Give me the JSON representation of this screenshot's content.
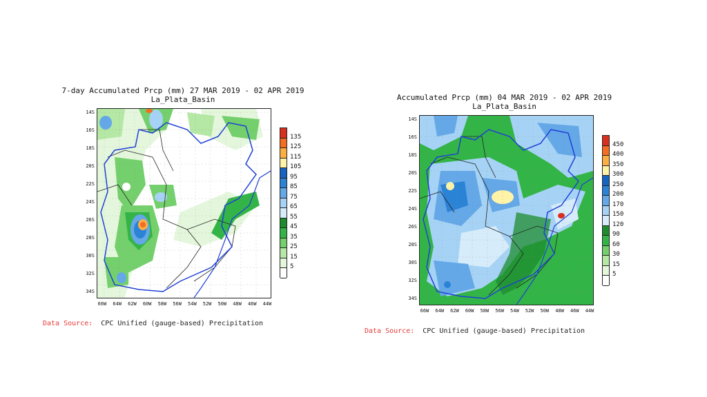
{
  "left": {
    "title_line1": "7-day Accumulated Prcp (mm) 27 MAR 2019 - 02 APR 2019",
    "title_line2": "La_Plata_Basin",
    "yticks": [
      "14S",
      "16S",
      "18S",
      "20S",
      "22S",
      "24S",
      "26S",
      "28S",
      "30S",
      "32S",
      "34S"
    ],
    "xticks": [
      "66W",
      "64W",
      "62W",
      "60W",
      "58W",
      "56W",
      "54W",
      "52W",
      "50W",
      "48W",
      "46W",
      "44W"
    ],
    "legend_levels": [
      "135",
      "125",
      "115",
      "105",
      "95",
      "85",
      "75",
      "65",
      "55",
      "45",
      "35",
      "25",
      "15",
      "5"
    ],
    "legend_colors": [
      "#d7301f",
      "#f46d21",
      "#fdae42",
      "#fff3a8",
      "#1565c0",
      "#2b83d6",
      "#64a8e8",
      "#a6d3f5",
      "#d6ecfb",
      "#1e8c2e",
      "#33b447",
      "#74d06c",
      "#b4e8a4",
      "#e4f7dc",
      "#ffffff"
    ],
    "source_label": "Data Source:",
    "source_text": "CPC Unified (gauge-based) Precipitation"
  },
  "right": {
    "title_line1": "Accumulated Prcp (mm) 04 MAR 2019 - 02 APR 2019",
    "title_line2": "La_Plata_Basin",
    "yticks": [
      "14S",
      "16S",
      "18S",
      "20S",
      "22S",
      "24S",
      "26S",
      "28S",
      "30S",
      "32S",
      "34S"
    ],
    "xticks": [
      "66W",
      "64W",
      "62W",
      "60W",
      "58W",
      "56W",
      "54W",
      "52W",
      "50W",
      "48W",
      "46W",
      "44W"
    ],
    "legend_levels": [
      "450",
      "400",
      "350",
      "300",
      "250",
      "200",
      "170",
      "150",
      "120",
      "90",
      "60",
      "30",
      "15",
      "5"
    ],
    "legend_colors": [
      "#d7301f",
      "#f46d21",
      "#fdae42",
      "#fff3a8",
      "#1565c0",
      "#2b83d6",
      "#64a8e8",
      "#a6d3f5",
      "#d6ecfb",
      "#1e8c2e",
      "#33b447",
      "#74d06c",
      "#b4e8a4",
      "#e4f7dc",
      "#ffffff"
    ],
    "source_label": "Data Source:",
    "source_text": "CPC Unified (gauge-based) Precipitation"
  }
}
